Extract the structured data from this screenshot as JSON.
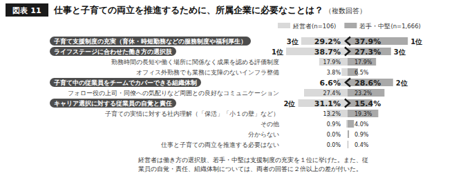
{
  "chart_data": {
    "type": "bar",
    "figure_label": "図表 11",
    "title": "仕事と子育ての両立を推進するために、所属企業に必要なことは？",
    "subtitle": "（複数回答）",
    "orientation": "horizontal",
    "data_labels": true,
    "tick_labels": false,
    "legend": "top",
    "xlim": [
      0,
      40
    ],
    "categories": [
      "子育て支援制度の充実（育休・時短勤務などの服務制度や福利厚生）",
      "ライフステージに合わせた働き方の選択肢",
      "勤務時間の長短や働く場所に関係なく成果を認める評価制度",
      "オフィス外勤務でも業務に支障のないインフラ整備",
      "子育て中の従業員をチームでカバーできる組織体制",
      "フォロー役の上司・同僚への気配りなど周囲との良好なコミュニケーション",
      "キャリア選択に対する従業員の自覚と責任",
      "子育ての実情に対する社内理解（「保活」「小１の壁」など）",
      "その他",
      "分からない",
      "仕事と子育ての両立を推進する必要はない"
    ],
    "series": [
      {
        "name": "経営者(n=106)",
        "color": "#d9d9d9",
        "values": [
          29.2,
          38.7,
          17.9,
          3.8,
          6.6,
          27.4,
          31.1,
          13.2,
          0.9,
          0.0,
          0.0
        ],
        "value_labels": [
          "29.2%",
          "38.7%",
          "17.9%",
          "3.8%",
          "6.6%",
          "27.4%",
          "31.1%",
          "13.2%",
          "0.9%",
          "0.0%",
          "0.0%"
        ],
        "rank_labels": [
          "3位",
          "1位",
          null,
          null,
          null,
          null,
          "2位",
          null,
          null,
          null,
          null
        ]
      },
      {
        "name": "若手・中堅(n=1,666)",
        "color": "#a9a9a9",
        "values": [
          37.9,
          27.3,
          17.9,
          6.5,
          28.6,
          23.2,
          15.4,
          19.3,
          4.0,
          0.9,
          0.4
        ],
        "value_labels": [
          "37.9%",
          "27.3%",
          "17.9%",
          "6.5%",
          "28.6%",
          "23.2%",
          "15.4%",
          "19.3%",
          "4.0%",
          "0.9%",
          "0.4%"
        ],
        "rank_labels": [
          "1位",
          "3位",
          null,
          null,
          "2位",
          null,
          null,
          null,
          null,
          null,
          null
        ]
      }
    ],
    "annotations": [
      "経営者は働き方の選択肢、若手・中堅は支援制度の充実を１位に挙げた。また、従",
      "業員の自覚・責任、組織体制については、両者の回答に２倍以上の差が付いた。"
    ]
  }
}
